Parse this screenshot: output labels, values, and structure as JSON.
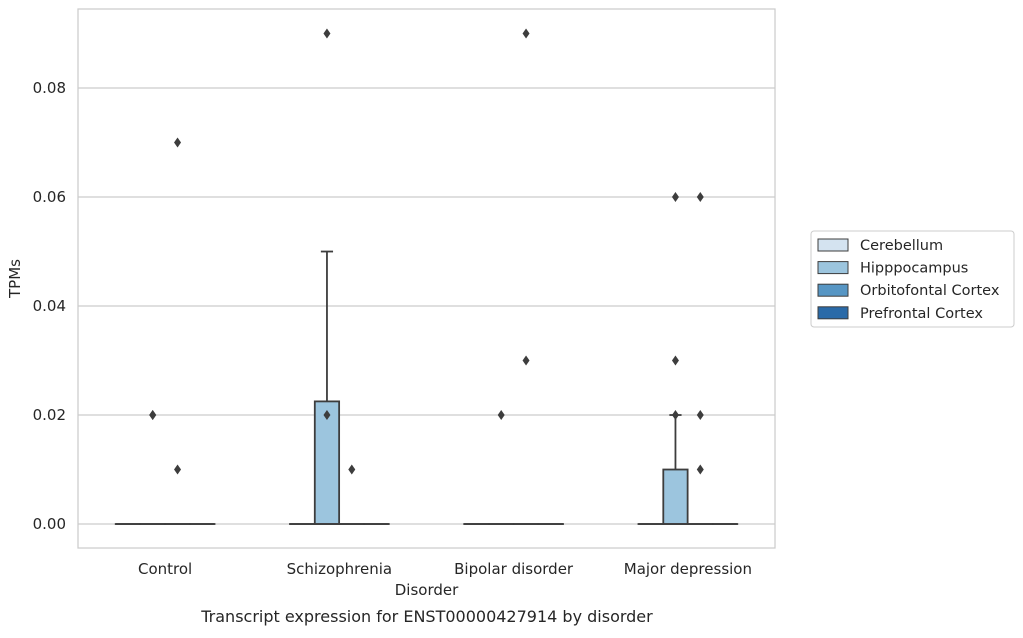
{
  "chart_data": {
    "type": "box",
    "title": "",
    "caption": "Transcript expression for ENST00000427914 by disorder",
    "xlabel": "Disorder",
    "ylabel": "TPMs",
    "ylim": [
      -0.0044,
      0.0945
    ],
    "yticks": [
      0.0,
      0.02,
      0.04,
      0.06,
      0.08
    ],
    "ytick_labels": [
      "0.00",
      "0.02",
      "0.04",
      "0.06",
      "0.08"
    ],
    "grid": "horizontal",
    "legend_position": "right",
    "categories": [
      "Control",
      "Schizophrenia",
      "Bipolar disorder",
      "Major depression"
    ],
    "series": [
      {
        "name": "Cerebellum",
        "color": "#d4e3f0",
        "boxes": [
          {
            "q1": 0,
            "median": 0,
            "q3": 0,
            "whisker_low": 0,
            "whisker_high": 0,
            "outliers": []
          },
          {
            "q1": 0,
            "median": 0,
            "q3": 0,
            "whisker_low": 0,
            "whisker_high": 0,
            "outliers": []
          },
          {
            "q1": 0,
            "median": 0,
            "q3": 0,
            "whisker_low": 0,
            "whisker_high": 0,
            "outliers": []
          },
          {
            "q1": 0,
            "median": 0,
            "q3": 0,
            "whisker_low": 0,
            "whisker_high": 0,
            "outliers": []
          }
        ]
      },
      {
        "name": "Hipppocampus",
        "color": "#9cc5de",
        "boxes": [
          {
            "q1": 0,
            "median": 0,
            "q3": 0,
            "whisker_low": 0,
            "whisker_high": 0,
            "outliers": [
              0.02,
              0.02
            ]
          },
          {
            "q1": 0,
            "median": 0,
            "q3": 0.0225,
            "whisker_low": 0,
            "whisker_high": 0.05,
            "outliers": [
              0.02,
              0.09
            ]
          },
          {
            "q1": 0,
            "median": 0,
            "q3": 0,
            "whisker_low": 0,
            "whisker_high": 0,
            "outliers": [
              0.02
            ]
          },
          {
            "q1": 0,
            "median": 0,
            "q3": 0.01,
            "whisker_low": 0,
            "whisker_high": 0.02,
            "outliers": [
              0.02,
              0.03,
              0.06
            ]
          }
        ]
      },
      {
        "name": "Orbitofontal Cortex",
        "color": "#5796c4",
        "boxes": [
          {
            "q1": 0,
            "median": 0,
            "q3": 0,
            "whisker_low": 0,
            "whisker_high": 0,
            "outliers": [
              0.01,
              0.07
            ]
          },
          {
            "q1": 0,
            "median": 0,
            "q3": 0,
            "whisker_low": 0,
            "whisker_high": 0,
            "outliers": [
              0.01
            ]
          },
          {
            "q1": 0,
            "median": 0,
            "q3": 0,
            "whisker_low": 0,
            "whisker_high": 0,
            "outliers": [
              0.03,
              0.09
            ]
          },
          {
            "q1": 0,
            "median": 0,
            "q3": 0,
            "whisker_low": 0,
            "whisker_high": 0,
            "outliers": [
              0.01,
              0.02,
              0.06
            ]
          }
        ]
      },
      {
        "name": "Prefrontal Cortex",
        "color": "#2a6aa8",
        "boxes": [
          {
            "q1": 0,
            "median": 0,
            "q3": 0,
            "whisker_low": 0,
            "whisker_high": 0,
            "outliers": []
          },
          {
            "q1": 0,
            "median": 0,
            "q3": 0,
            "whisker_low": 0,
            "whisker_high": 0,
            "outliers": []
          },
          {
            "q1": 0,
            "median": 0,
            "q3": 0,
            "whisker_low": 0,
            "whisker_high": 0,
            "outliers": []
          },
          {
            "q1": 0,
            "median": 0,
            "q3": 0,
            "whisker_low": 0,
            "whisker_high": 0,
            "outliers": []
          }
        ]
      }
    ]
  }
}
